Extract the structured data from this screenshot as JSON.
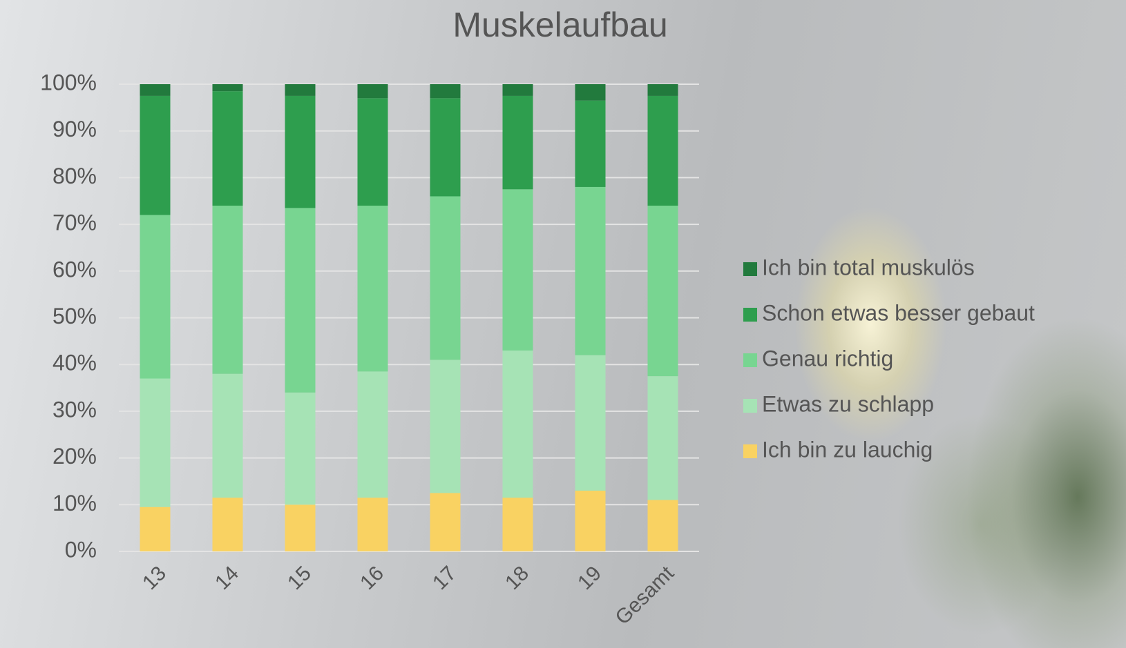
{
  "chart_data": {
    "type": "bar",
    "stacked": true,
    "title": "Muskelaufbau",
    "categories": [
      "13",
      "14",
      "15",
      "16",
      "17",
      "18",
      "19",
      "Gesamt"
    ],
    "series": [
      {
        "name": "Ich bin zu lauchig",
        "color": "#f9d262",
        "values": [
          9.5,
          11.5,
          10,
          11.5,
          12.5,
          11.5,
          13,
          11
        ]
      },
      {
        "name": "Etwas zu schlapp",
        "color": "#a6e3b5",
        "values": [
          27.5,
          26.5,
          24,
          27,
          28.5,
          31.5,
          29,
          26.5
        ]
      },
      {
        "name": "Genau richtig",
        "color": "#78d591",
        "values": [
          35,
          36,
          39.5,
          35.5,
          35,
          34.5,
          36,
          36.5
        ]
      },
      {
        "name": "Schon etwas besser gebaut",
        "color": "#2e9e4e",
        "values": [
          25.5,
          24.5,
          24,
          23,
          21,
          20,
          18.5,
          23.5
        ]
      },
      {
        "name": "Ich bin total muskulös",
        "color": "#227a3d",
        "values": [
          2.5,
          1.5,
          2.5,
          3,
          3,
          2.5,
          3.5,
          2.5
        ]
      }
    ],
    "ylim": [
      0,
      100
    ],
    "yticks": [
      {
        "value": 0,
        "label": "0%"
      },
      {
        "value": 10,
        "label": "10%"
      },
      {
        "value": 20,
        "label": "20%"
      },
      {
        "value": 30,
        "label": "30%"
      },
      {
        "value": 40,
        "label": "40%"
      },
      {
        "value": 50,
        "label": "50%"
      },
      {
        "value": 60,
        "label": "60%"
      },
      {
        "value": 70,
        "label": "70%"
      },
      {
        "value": 80,
        "label": "80%"
      },
      {
        "value": 90,
        "label": "90%"
      },
      {
        "value": 100,
        "label": "100%"
      }
    ],
    "grid": true,
    "legend": "right"
  }
}
